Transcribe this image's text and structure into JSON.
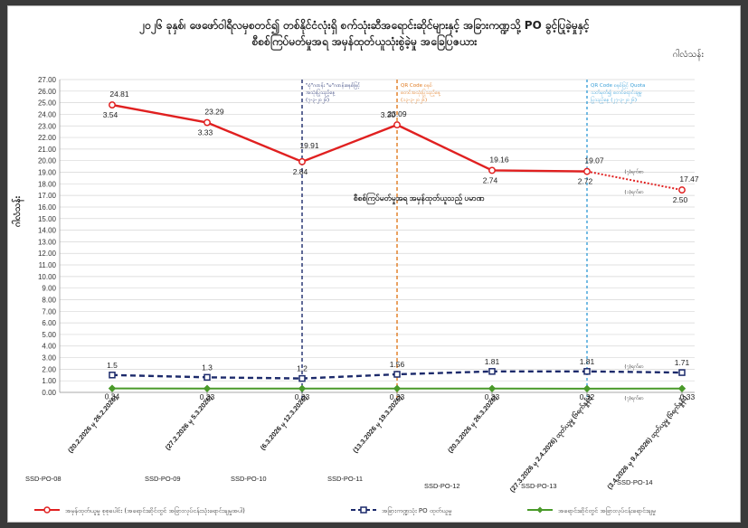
{
  "chart_data": {
    "type": "line",
    "title_line1": "၂၀၂၆ ခုနှစ်၊ ဖေဖော်ဝါရီလမှစတင်၍ တစ်နိုင်ငံလုံးရှိ စက်သုံးဆီအရောင်းဆိုင်များနှင့် အခြားကဏ္ဍသို့ PO ခွင့်ပြုခဲ့မှုနှင့်",
    "title_line2": "စီစစ်ကြပ်မတ်မှုအရ အမှန်ထုတ်ယူသုံးစွဲခဲ့မှု အခြေပြဇယား",
    "unit_label": "ဂါလံသန်း",
    "ylabel": "ဂါလံသန်း",
    "ylim": [
      0,
      27
    ],
    "ytick_step": 1,
    "categories": [
      "(20.2.2026 မှ 26.2.2026)",
      "(27.2.2026 မှ 5.3.2026)",
      "(6.3.2026 မှ 12.3.2026)",
      "(13.3.2026 မှ 19.3.2026)",
      "(20.3.2026 မှ 26.3.2026)",
      "(27.3.2026 မှ 2.4.2026) ထုတ်ယူမှု (၆ရက်နှုန်း)",
      "(3.4.2026 မှ 9.4.2026) ထုတ်ယူမှု (၆ရက်နှုန်း)"
    ],
    "po_codes": [
      "SSD-PO-08",
      "SSD-PO-09",
      "SSD-PO-10",
      "SSD-PO-11",
      "SSD-PO-12",
      "SSD-PO-13",
      "SSD-PO-14"
    ],
    "series": [
      {
        "name": "အမှန်ထုတ်ယူမှု စုစုပေါင်း (အရောင်းဆိုင်တွင် အခြားလုပ်ငန်းသုံးရောင်းချမှုအပါ)",
        "color": "#e02020",
        "style": "solid",
        "values": [
          24.81,
          23.29,
          19.91,
          23.09,
          19.16,
          19.07,
          17.47
        ],
        "labels": [
          "24.81",
          "23.29",
          "19.91",
          "23.09",
          "19.16",
          "19.07",
          "17.47"
        ]
      },
      {
        "name": "အခြားကဏ္ဍသုံး PO ထုတ်ယူမှု",
        "color": "#1c2a6b",
        "style": "dashed",
        "values": [
          1.5,
          1.3,
          1.2,
          1.56,
          1.81,
          1.81,
          1.71
        ],
        "labels": [
          "1.5",
          "1.3",
          "1.2",
          "1.56",
          "1.81",
          "1.81",
          "1.71"
        ]
      },
      {
        "name": "အရောင်းဆိုင်တွင် အခြားလုပ်ငန်းရောင်းချမှု",
        "color": "#4a9a2a",
        "style": "solid",
        "values": [
          0.34,
          0.33,
          0.33,
          0.33,
          0.33,
          0.32,
          0.33
        ],
        "labels": [
          "0.34",
          "0.33",
          "0.33",
          "0.33",
          "0.33",
          "0.32",
          "0.33"
        ]
      }
    ],
    "diff_labels": [
      "3.54",
      "3.33",
      "2.84",
      "3.30",
      "2.74",
      "2.72",
      "2.50"
    ],
    "day_notes": [
      {
        "text": "(၇)ရက်စာ",
        "series": 0
      },
      {
        "text": "(၁)ရက်စာ",
        "series": 0
      },
      {
        "text": "(၇)ရက်စာ",
        "series": 1
      },
      {
        "text": "(၇)ရက်စာ",
        "series": 2
      }
    ],
    "main_annotation": "စီစစ်ကြပ်မတ်မှုအရ အမှန်ထုတ်ယူသည့် ပမာဏ",
    "vlines": [
      {
        "text": [
          "\"စုံ\"ဂဏန်း \"မ\"ဂဏန်းစနစ်ဖြင့်",
          "အသုံးပြုသည့်နေ့",
          "(၇-၃-၂၀၂၆)"
        ],
        "color": "#1c2a6b"
      },
      {
        "text": [
          "QR Code စနစ်",
          "စတင်အသုံးပြုသည့်နေ့",
          "(၁၃-၃-၂၀၂၆)"
        ],
        "color": "#e07a20"
      },
      {
        "text": [
          "QR Code စနစ်ဖြင့် Quota",
          "သတ်မှတ်၍ စတင်ရောင်းချမှု",
          "ပြုသည့်နေ့ (၂၇-၃-၂၀၂၆)"
        ],
        "color": "#3ba0d8"
      }
    ],
    "grid": true,
    "legend_position": "bottom"
  }
}
